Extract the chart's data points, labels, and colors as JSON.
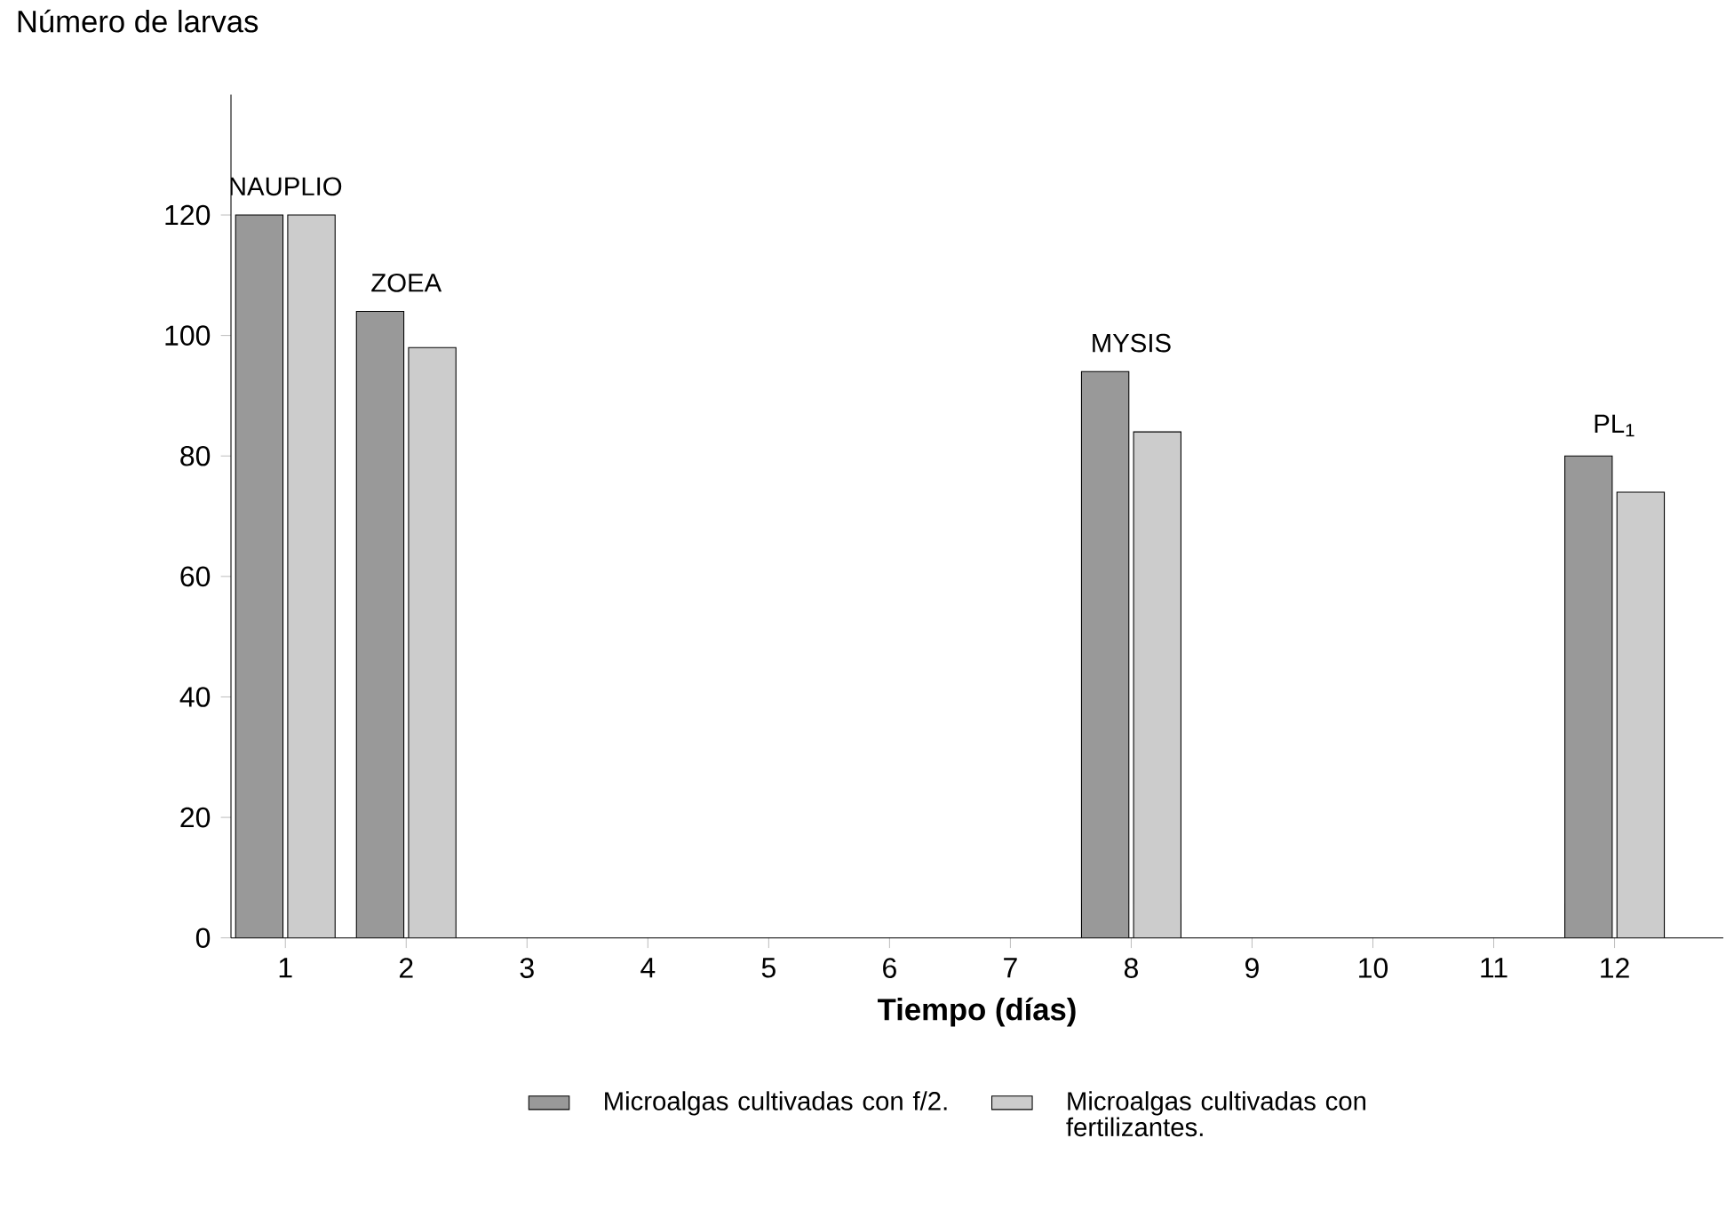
{
  "chart_data": {
    "type": "bar",
    "ylabel": "Número de larvas",
    "xlabel": "Tiempo (días)",
    "categories": [
      "1",
      "2",
      "3",
      "4",
      "5",
      "6",
      "7",
      "8",
      "9",
      "10",
      "11",
      "12"
    ],
    "series": [
      {
        "name": "Microalgas cultivadas con f/2.",
        "color": "#999999",
        "values": [
          120,
          104,
          null,
          null,
          null,
          null,
          null,
          94,
          null,
          null,
          null,
          80
        ]
      },
      {
        "name": "Microalgas cultivadas con fertilizantes.",
        "color": "#cccccc",
        "values": [
          120,
          98,
          null,
          null,
          null,
          null,
          null,
          84,
          null,
          null,
          null,
          74
        ]
      }
    ],
    "ylim": [
      0,
      140
    ],
    "yticks": [
      0,
      20,
      40,
      60,
      80,
      100,
      120
    ],
    "grid": false,
    "legend": "bottom",
    "annotations": [
      {
        "text": "NAUPLIO",
        "x": "1",
        "y": 120
      },
      {
        "text": "ZOEA",
        "x": "2",
        "y": 104
      },
      {
        "text": "MYSIS",
        "x": "8",
        "y": 94
      },
      {
        "text": "PL$_{1}$",
        "x": "12",
        "y": 80
      }
    ]
  }
}
